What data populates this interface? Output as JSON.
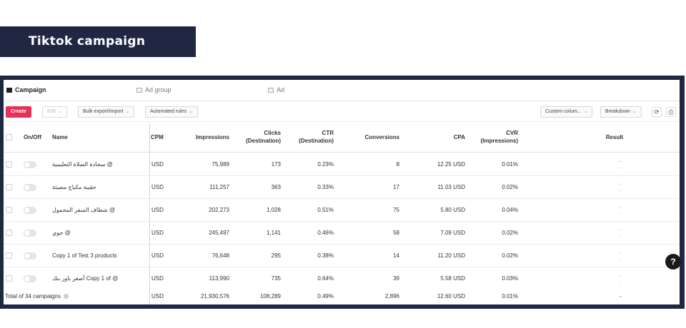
{
  "banner": {
    "title": "Tiktok campaign"
  },
  "tabs": [
    {
      "label": "Campaign"
    },
    {
      "label": "Ad group"
    },
    {
      "label": "Ad"
    }
  ],
  "toolbar": {
    "create_label": "Create",
    "edit_label": "Edit",
    "bulk_label": "Bulk export/import",
    "rules_label": "Automated rules",
    "custom_columns_label": "Custom colum...",
    "breakdown_label": "Breakdown"
  },
  "columns": {
    "onoff": "On/Off",
    "name": "Name",
    "cpm": "CPM",
    "impressions": "Impressions",
    "clicks_1": "Clicks",
    "clicks_2": "(Destination)",
    "ctr_1": "CTR",
    "ctr_2": "(Destination)",
    "conversions": "Conversions",
    "cpa": "CPA",
    "cvr_1": "CVR",
    "cvr_2": "(Impressions)",
    "result": "Result"
  },
  "rows": [
    {
      "name": "سجادة الصلاة التعليمية @",
      "cpm": "USD",
      "impressions": "75,989",
      "clicks": "173",
      "ctr": "0.23%",
      "conversions": "8",
      "cpa": "12.25 USD",
      "cvr": "0.01%",
      "result": "-",
      "result_sub": "-"
    },
    {
      "name": "حقيبة مكياج مضيئة",
      "cpm": "USD",
      "impressions": "111,257",
      "clicks": "363",
      "ctr": "0.33%",
      "conversions": "17",
      "cpa": "11.03 USD",
      "cvr": "0.02%",
      "result": "-",
      "result_sub": "-"
    },
    {
      "name": "شطاف السفر المحمول @",
      "cpm": "USD",
      "impressions": "202,273",
      "clicks": "1,028",
      "ctr": "0.51%",
      "conversions": "75",
      "cpa": "5.80 USD",
      "cvr": "0.04%",
      "result": "-",
      "result_sub": "-"
    },
    {
      "name": "جوي @",
      "cpm": "USD",
      "impressions": "245,497",
      "clicks": "1,141",
      "ctr": "0.46%",
      "conversions": "58",
      "cpa": "7.09 USD",
      "cvr": "0.02%",
      "result": "-",
      "result_sub": "-"
    },
    {
      "name": "Copy 1 of Test 3 products",
      "cpm": "USD",
      "impressions": "76,648",
      "clicks": "295",
      "ctr": "0.38%",
      "conversions": "14",
      "cpa": "11.20 USD",
      "cvr": "0.02%",
      "result": "-",
      "result_sub": "-"
    },
    {
      "name": "أصغر باور بنك Copy 1 of @",
      "cpm": "USD",
      "impressions": "113,990",
      "clicks": "735",
      "ctr": "0.64%",
      "conversions": "39",
      "cpa": "5.58 USD",
      "cvr": "0.03%",
      "result": "-",
      "result_sub": "-"
    }
  ],
  "total": {
    "label": "Total of 34 campaigns",
    "cpm": "USD",
    "impressions": "21,930,576",
    "clicks": "108,289",
    "ctr": "0.49%",
    "conversions": "2,896",
    "cpa": "12.60 USD",
    "cvr": "0.01%",
    "result": "-"
  },
  "colors": {
    "banner": "#1f2743",
    "create": "#e8305c"
  },
  "icons": {
    "refresh": "refresh-icon",
    "export": "export-icon",
    "help": "help-icon"
  }
}
